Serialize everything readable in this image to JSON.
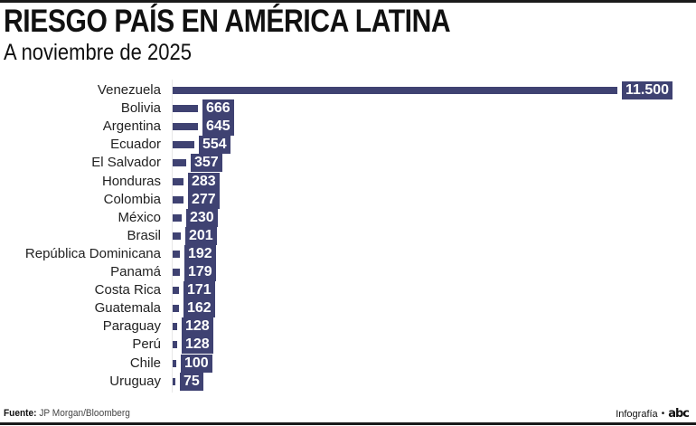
{
  "header": {
    "title": "RIESGO PAÍS EN AMÉRICA LATINA",
    "subtitle": "A noviembre de 2025"
  },
  "footer": {
    "source_label": "Fuente:",
    "source": "JP Morgan/Bloomberg",
    "credit": "Infografía",
    "separator": "•",
    "logo": "abc"
  },
  "colors": {
    "bar": "#3f4272",
    "label_text": "#ffffff"
  },
  "chart_data": {
    "type": "bar",
    "orientation": "horizontal",
    "title": "RIESGO PAÍS EN AMÉRICA LATINA",
    "subtitle": "A noviembre de 2025",
    "xlabel": "",
    "ylabel": "",
    "grid": false,
    "categories": [
      "Venezuela",
      "Bolivia",
      "Argentina",
      "Ecuador",
      "El Salvador",
      "Honduras",
      "Colombia",
      "México",
      "Brasil",
      "República Dominicana",
      "Panamá",
      "Costa Rica",
      "Guatemala",
      "Paraguay",
      "Perú",
      "Chile",
      "Uruguay"
    ],
    "values": [
      11500,
      666,
      645,
      554,
      357,
      283,
      277,
      230,
      201,
      192,
      179,
      171,
      162,
      128,
      128,
      100,
      75
    ],
    "value_labels": [
      "11.500",
      "666",
      "645",
      "554",
      "357",
      "283",
      "277",
      "230",
      "201",
      "192",
      "179",
      "171",
      "162",
      "128",
      "128",
      "100",
      "75"
    ],
    "source": "JP Morgan/Bloomberg"
  }
}
